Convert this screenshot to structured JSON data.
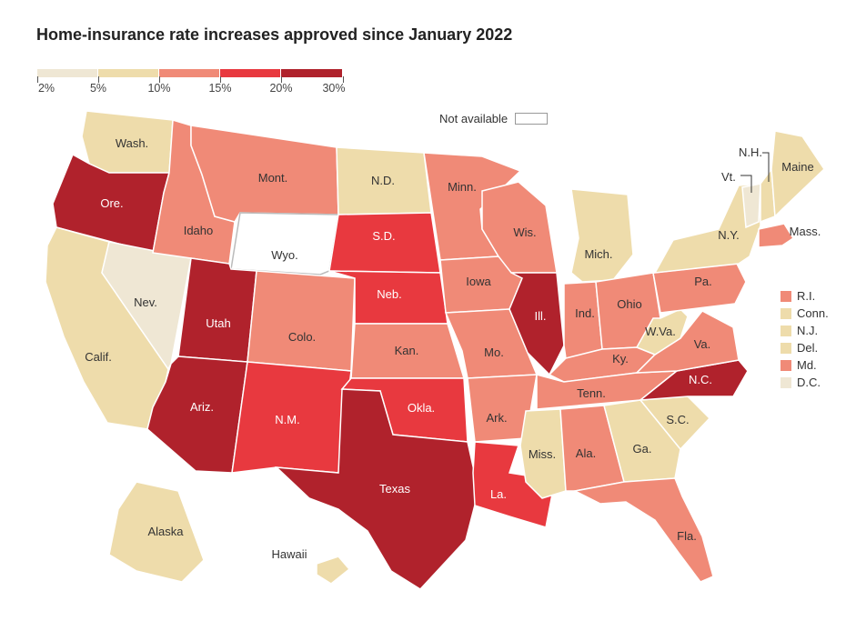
{
  "title": "Home-insurance rate increases approved since January 2022",
  "legend": {
    "ticks": [
      "2%",
      "5%",
      "10%",
      "15%",
      "20%",
      "30%"
    ],
    "bins": [
      {
        "color": "#efe7d4"
      },
      {
        "color": "#eedcab"
      },
      {
        "color": "#f08a77"
      },
      {
        "color": "#e8393f"
      },
      {
        "color": "#b0222c"
      }
    ],
    "not_available": "Not available"
  },
  "colors": {
    "na": "#ffffff",
    "b1": "#efe7d4",
    "b2": "#eedcab",
    "b3": "#f08a77",
    "b4": "#e8393f",
    "b5": "#b0222c"
  },
  "states": [
    {
      "id": "WA",
      "label": "Wash.",
      "bin": 2
    },
    {
      "id": "OR",
      "label": "Ore.",
      "bin": 5
    },
    {
      "id": "CA",
      "label": "Calif.",
      "bin": 2
    },
    {
      "id": "NV",
      "label": "Nev.",
      "bin": 1
    },
    {
      "id": "ID",
      "label": "Idaho",
      "bin": 3
    },
    {
      "id": "MT",
      "label": "Mont.",
      "bin": 3
    },
    {
      "id": "WY",
      "label": "Wyo.",
      "bin": 0
    },
    {
      "id": "UT",
      "label": "Utah",
      "bin": 5
    },
    {
      "id": "AZ",
      "label": "Ariz.",
      "bin": 5
    },
    {
      "id": "CO",
      "label": "Colo.",
      "bin": 3
    },
    {
      "id": "NM",
      "label": "N.M.",
      "bin": 4
    },
    {
      "id": "ND",
      "label": "N.D.",
      "bin": 2
    },
    {
      "id": "SD",
      "label": "S.D.",
      "bin": 4
    },
    {
      "id": "NE",
      "label": "Neb.",
      "bin": 4
    },
    {
      "id": "KS",
      "label": "Kan.",
      "bin": 3
    },
    {
      "id": "OK",
      "label": "Okla.",
      "bin": 4
    },
    {
      "id": "TX",
      "label": "Texas",
      "bin": 5
    },
    {
      "id": "MN",
      "label": "Minn.",
      "bin": 3
    },
    {
      "id": "IA",
      "label": "Iowa",
      "bin": 3
    },
    {
      "id": "MO",
      "label": "Mo.",
      "bin": 3
    },
    {
      "id": "AR",
      "label": "Ark.",
      "bin": 3
    },
    {
      "id": "LA",
      "label": "La.",
      "bin": 4
    },
    {
      "id": "WI",
      "label": "Wis.",
      "bin": 3
    },
    {
      "id": "IL",
      "label": "Ill.",
      "bin": 5
    },
    {
      "id": "MI",
      "label": "Mich.",
      "bin": 2
    },
    {
      "id": "IN",
      "label": "Ind.",
      "bin": 3
    },
    {
      "id": "OH",
      "label": "Ohio",
      "bin": 3
    },
    {
      "id": "KY",
      "label": "Ky.",
      "bin": 3
    },
    {
      "id": "TN",
      "label": "Tenn.",
      "bin": 3
    },
    {
      "id": "MS",
      "label": "Miss.",
      "bin": 2
    },
    {
      "id": "AL",
      "label": "Ala.",
      "bin": 3
    },
    {
      "id": "GA",
      "label": "Ga.",
      "bin": 2
    },
    {
      "id": "FL",
      "label": "Fla.",
      "bin": 3
    },
    {
      "id": "SC",
      "label": "S.C.",
      "bin": 2
    },
    {
      "id": "NC",
      "label": "N.C.",
      "bin": 5
    },
    {
      "id": "VA",
      "label": "Va.",
      "bin": 3
    },
    {
      "id": "WV",
      "label": "W.Va.",
      "bin": 2
    },
    {
      "id": "PA",
      "label": "Pa.",
      "bin": 3
    },
    {
      "id": "NY",
      "label": "N.Y.",
      "bin": 2
    },
    {
      "id": "VT",
      "label": "Vt.",
      "bin": 1
    },
    {
      "id": "NH",
      "label": "N.H.",
      "bin": 2
    },
    {
      "id": "ME",
      "label": "Maine",
      "bin": 2
    },
    {
      "id": "MA",
      "label": "Mass.",
      "bin": 3
    },
    {
      "id": "AK",
      "label": "Alaska",
      "bin": 2
    },
    {
      "id": "HI",
      "label": "Hawaii",
      "bin": 2
    }
  ],
  "small_states": [
    {
      "id": "RI",
      "label": "R.I.",
      "bin": 3
    },
    {
      "id": "CT",
      "label": "Conn.",
      "bin": 2
    },
    {
      "id": "NJ",
      "label": "N.J.",
      "bin": 2
    },
    {
      "id": "DE",
      "label": "Del.",
      "bin": 2
    },
    {
      "id": "MD",
      "label": "Md.",
      "bin": 3
    },
    {
      "id": "DC",
      "label": "D.C.",
      "bin": 1
    }
  ]
}
